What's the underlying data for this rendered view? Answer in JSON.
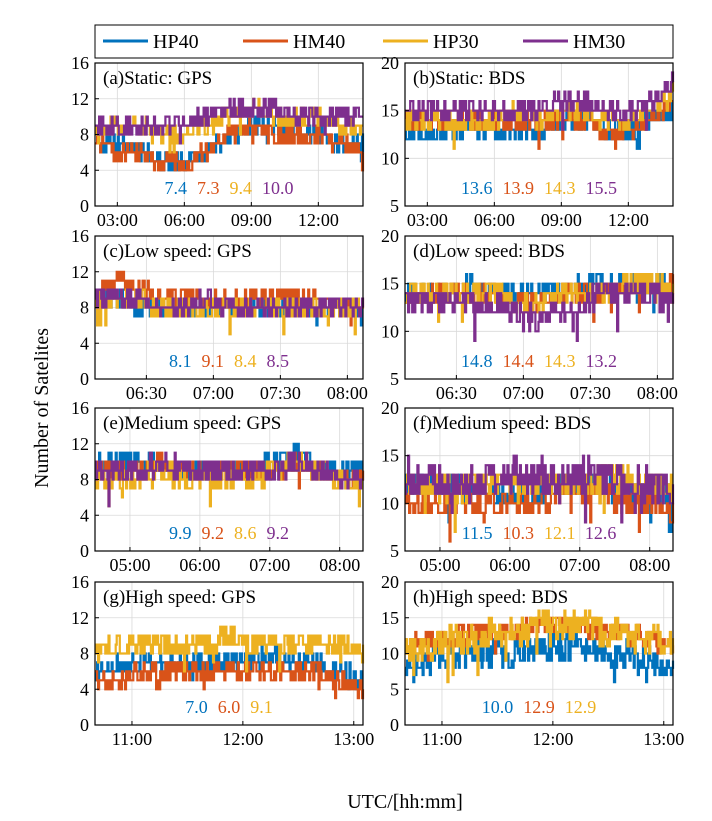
{
  "figure": {
    "ylabel": "Number of Satelites",
    "xlabel": "UTC/[hh:mm]"
  },
  "legend": {
    "placement": "top",
    "items": [
      {
        "name": "HP40",
        "color": "#0072BD"
      },
      {
        "name": "HM40",
        "color": "#D95319"
      },
      {
        "name": "HP30",
        "color": "#EDB120"
      },
      {
        "name": "HM30",
        "color": "#7E2F8E"
      }
    ]
  },
  "chart_data": [
    {
      "type": "line",
      "title": "(a)Static: GPS",
      "ylim": [
        0,
        16
      ],
      "yticks": [
        0,
        4,
        8,
        12,
        16
      ],
      "xlim": [
        "02:00",
        "14:00"
      ],
      "xticks": [
        "03:00",
        "06:00",
        "09:00",
        "12:00"
      ],
      "series": [
        {
          "name": "HP40",
          "color": "#0072BD",
          "mean": "7.4",
          "base": [
            7,
            7,
            6,
            5,
            5,
            6,
            8,
            9,
            9,
            8,
            8,
            7,
            7
          ],
          "noise": 1.0,
          "lo": 3,
          "hi": 10
        },
        {
          "name": "HM40",
          "color": "#D95319",
          "mean": "7.3",
          "base": [
            7,
            6,
            6,
            5,
            5,
            6,
            8,
            9,
            8,
            8,
            8,
            7,
            6
          ],
          "noise": 1.0,
          "lo": 3,
          "hi": 10
        },
        {
          "name": "HP30",
          "color": "#EDB120",
          "mean": "9.4",
          "base": [
            9,
            9,
            9,
            8,
            8,
            9,
            10,
            11,
            10,
            10,
            10,
            9,
            9
          ],
          "noise": 1.0,
          "lo": 6,
          "hi": 12
        },
        {
          "name": "HM30",
          "color": "#7E2F8E",
          "mean": "10.0",
          "base": [
            9,
            9,
            9,
            9,
            9,
            10,
            11,
            11,
            11,
            10,
            10,
            10,
            10
          ],
          "noise": 1.0,
          "lo": 7,
          "hi": 13
        }
      ]
    },
    {
      "type": "line",
      "title": "(b)Static: BDS",
      "ylim": [
        5,
        20
      ],
      "yticks": [
        5,
        10,
        15,
        20
      ],
      "xlim": [
        "02:00",
        "14:00"
      ],
      "xticks": [
        "03:00",
        "06:00",
        "09:00",
        "12:00"
      ],
      "series": [
        {
          "name": "HP40",
          "color": "#0072BD",
          "mean": "13.6",
          "base": [
            13,
            13,
            13,
            13,
            13,
            13,
            13,
            14,
            14,
            13,
            13,
            14,
            15
          ],
          "noise": 1.0,
          "lo": 9,
          "hi": 17
        },
        {
          "name": "HM40",
          "color": "#D95319",
          "mean": "13.9",
          "base": [
            14,
            14,
            14,
            14,
            14,
            14,
            14,
            14,
            14,
            13,
            13,
            14,
            16
          ],
          "noise": 1.0,
          "lo": 11,
          "hi": 18
        },
        {
          "name": "HP30",
          "color": "#EDB120",
          "mean": "14.3",
          "base": [
            14,
            14,
            14,
            14,
            14,
            15,
            14,
            15,
            15,
            14,
            14,
            15,
            17
          ],
          "noise": 1.0,
          "lo": 11,
          "hi": 19
        },
        {
          "name": "HM30",
          "color": "#7E2F8E",
          "mean": "15.5",
          "base": [
            15,
            15,
            15,
            15,
            15,
            15,
            15,
            16,
            16,
            15,
            15,
            16,
            18
          ],
          "noise": 1.0,
          "lo": 12,
          "hi": 20
        }
      ]
    },
    {
      "type": "line",
      "title": "(c)Low speed: GPS",
      "ylim": [
        0,
        16
      ],
      "yticks": [
        0,
        4,
        8,
        12,
        16
      ],
      "xlim": [
        "06:07",
        "08:07"
      ],
      "xticks": [
        "06:30",
        "07:00",
        "07:30",
        "08:00"
      ],
      "series": [
        {
          "name": "HP40",
          "color": "#0072BD",
          "mean": "8.1",
          "base": [
            9,
            9,
            8,
            8,
            8,
            8,
            8,
            8,
            8,
            8,
            8,
            8,
            8
          ],
          "noise": 1.2,
          "lo": 5,
          "hi": 11
        },
        {
          "name": "HM40",
          "color": "#D95319",
          "mean": "9.1",
          "base": [
            10,
            11,
            10,
            9,
            9,
            9,
            9,
            9,
            9,
            9,
            9,
            8,
            8
          ],
          "noise": 1.0,
          "lo": 6,
          "hi": 12
        },
        {
          "name": "HP30",
          "color": "#EDB120",
          "mean": "8.4",
          "base": [
            9,
            9,
            9,
            8,
            8,
            8,
            8,
            8,
            8,
            8,
            8,
            8,
            8
          ],
          "noise": 1.2,
          "lo": 5,
          "hi": 11
        },
        {
          "name": "HM30",
          "color": "#7E2F8E",
          "mean": "8.5",
          "base": [
            9,
            9,
            9,
            8,
            8,
            9,
            8,
            8,
            8,
            8,
            8,
            8,
            8
          ],
          "noise": 1.0,
          "lo": 6,
          "hi": 11
        }
      ]
    },
    {
      "type": "line",
      "title": "(d)Low speed: BDS",
      "ylim": [
        5,
        20
      ],
      "yticks": [
        5,
        10,
        15,
        20
      ],
      "xlim": [
        "06:07",
        "08:07"
      ],
      "xticks": [
        "06:30",
        "07:00",
        "07:30",
        "08:00"
      ],
      "series": [
        {
          "name": "HP40",
          "color": "#0072BD",
          "mean": "14.8",
          "base": [
            14,
            14,
            14,
            15,
            14,
            14,
            14,
            14,
            15,
            15,
            15,
            15,
            15
          ],
          "noise": 1.0,
          "lo": 11,
          "hi": 17
        },
        {
          "name": "HM40",
          "color": "#D95319",
          "mean": "14.4",
          "base": [
            14,
            14,
            14,
            14,
            14,
            13,
            13,
            14,
            14,
            14,
            15,
            15,
            15
          ],
          "noise": 1.0,
          "lo": 11,
          "hi": 17
        },
        {
          "name": "HP30",
          "color": "#EDB120",
          "mean": "14.3",
          "base": [
            14,
            14,
            14,
            14,
            14,
            13,
            13,
            14,
            14,
            14,
            15,
            15,
            14
          ],
          "noise": 1.2,
          "lo": 11,
          "hi": 17
        },
        {
          "name": "HM30",
          "color": "#7E2F8E",
          "mean": "13.2",
          "base": [
            13,
            13,
            13,
            13,
            13,
            12,
            11,
            12,
            13,
            14,
            14,
            14,
            13
          ],
          "noise": 1.3,
          "lo": 8,
          "hi": 16
        }
      ]
    },
    {
      "type": "line",
      "title": "(e)Medium speed: GPS",
      "ylim": [
        0,
        16
      ],
      "yticks": [
        0,
        4,
        8,
        12,
        16
      ],
      "xlim": [
        "04:30",
        "08:20"
      ],
      "xticks": [
        "05:00",
        "06:00",
        "07:00",
        "08:00"
      ],
      "series": [
        {
          "name": "HP40",
          "color": "#0072BD",
          "mean": "9.9",
          "base": [
            10,
            10,
            10,
            10,
            9,
            9,
            9,
            9,
            10,
            11,
            10,
            9,
            9
          ],
          "noise": 1.0,
          "lo": 6,
          "hi": 12
        },
        {
          "name": "HM40",
          "color": "#D95319",
          "mean": "9.2",
          "base": [
            9,
            9,
            9,
            10,
            9,
            9,
            9,
            9,
            9,
            10,
            9,
            8,
            8
          ],
          "noise": 1.0,
          "lo": 6,
          "hi": 12
        },
        {
          "name": "HP30",
          "color": "#EDB120",
          "mean": "8.6",
          "base": [
            8,
            8,
            8,
            9,
            8,
            8,
            8,
            8,
            9,
            10,
            9,
            8,
            7
          ],
          "noise": 1.3,
          "lo": 3,
          "hi": 11
        },
        {
          "name": "HM30",
          "color": "#7E2F8E",
          "mean": "9.2",
          "base": [
            9,
            9,
            9,
            10,
            9,
            9,
            9,
            9,
            9,
            10,
            9,
            8,
            8
          ],
          "noise": 1.3,
          "lo": 3,
          "hi": 12
        }
      ]
    },
    {
      "type": "line",
      "title": "(f)Medium speed: BDS",
      "ylim": [
        5,
        20
      ],
      "yticks": [
        5,
        10,
        15,
        20
      ],
      "xlim": [
        "04:30",
        "08:20"
      ],
      "xticks": [
        "05:00",
        "06:00",
        "07:00",
        "08:00"
      ],
      "series": [
        {
          "name": "HP40",
          "color": "#0072BD",
          "mean": "11.5",
          "base": [
            12,
            12,
            12,
            11,
            11,
            11,
            11,
            12,
            12,
            12,
            11,
            11,
            11
          ],
          "noise": 1.5,
          "lo": 5,
          "hi": 16
        },
        {
          "name": "HM40",
          "color": "#D95319",
          "mean": "10.3",
          "base": [
            10,
            10,
            10,
            10,
            10,
            10,
            10,
            11,
            11,
            11,
            10,
            10,
            9
          ],
          "noise": 1.3,
          "lo": 6,
          "hi": 15
        },
        {
          "name": "HP30",
          "color": "#EDB120",
          "mean": "12.1",
          "base": [
            12,
            12,
            11,
            12,
            12,
            12,
            12,
            12,
            12,
            13,
            12,
            12,
            11
          ],
          "noise": 1.5,
          "lo": 6,
          "hi": 16
        },
        {
          "name": "HM30",
          "color": "#7E2F8E",
          "mean": "12.6",
          "base": [
            13,
            13,
            12,
            12,
            13,
            13,
            13,
            12,
            13,
            13,
            12,
            12,
            11
          ],
          "noise": 1.8,
          "lo": 5,
          "hi": 17
        }
      ]
    },
    {
      "type": "line",
      "title": "(g)High speed: GPS",
      "ylim": [
        0,
        16
      ],
      "yticks": [
        0,
        4,
        8,
        12,
        16
      ],
      "xlim": [
        "10:40",
        "13:05"
      ],
      "xticks": [
        "11:00",
        "12:00",
        "13:00"
      ],
      "series": [
        {
          "name": "HP40",
          "color": "#0072BD",
          "mean": "7.0",
          "base": [
            6,
            7,
            7,
            7,
            7,
            7,
            7,
            7,
            8,
            7,
            7,
            6,
            5
          ],
          "noise": 1.2,
          "lo": 1,
          "hi": 10
        },
        {
          "name": "HM40",
          "color": "#D95319",
          "mean": "6.0",
          "base": [
            5,
            5,
            6,
            6,
            6,
            6,
            6,
            6,
            6,
            6,
            6,
            5,
            4
          ],
          "noise": 1.0,
          "lo": 2,
          "hi": 9
        },
        {
          "name": "HP30",
          "color": "#EDB120",
          "mean": "9.1",
          "base": [
            8,
            9,
            9,
            9,
            9,
            9,
            10,
            9,
            9,
            9,
            9,
            9,
            8
          ],
          "noise": 1.3,
          "lo": 1,
          "hi": 12
        }
      ]
    },
    {
      "type": "line",
      "title": "(h)High speed: BDS",
      "ylim": [
        0,
        20
      ],
      "yticks": [
        0,
        5,
        10,
        15,
        20
      ],
      "xlim": [
        "10:40",
        "13:05"
      ],
      "xticks": [
        "11:00",
        "12:00",
        "13:00"
      ],
      "series": [
        {
          "name": "HP40",
          "color": "#0072BD",
          "mean": "10.0",
          "base": [
            8,
            9,
            10,
            10,
            10,
            10,
            11,
            11,
            11,
            10,
            10,
            9,
            8
          ],
          "noise": 2.0,
          "lo": 2,
          "hi": 15
        },
        {
          "name": "HM40",
          "color": "#D95319",
          "mean": "12.9",
          "base": [
            11,
            12,
            12,
            13,
            13,
            13,
            14,
            14,
            14,
            13,
            13,
            12,
            11
          ],
          "noise": 1.5,
          "lo": 6,
          "hi": 16
        },
        {
          "name": "HP30",
          "color": "#EDB120",
          "mean": "12.9",
          "base": [
            10,
            11,
            12,
            12,
            13,
            13,
            14,
            14,
            14,
            13,
            13,
            12,
            11
          ],
          "noise": 2.0,
          "lo": 0,
          "hi": 18
        }
      ]
    }
  ]
}
